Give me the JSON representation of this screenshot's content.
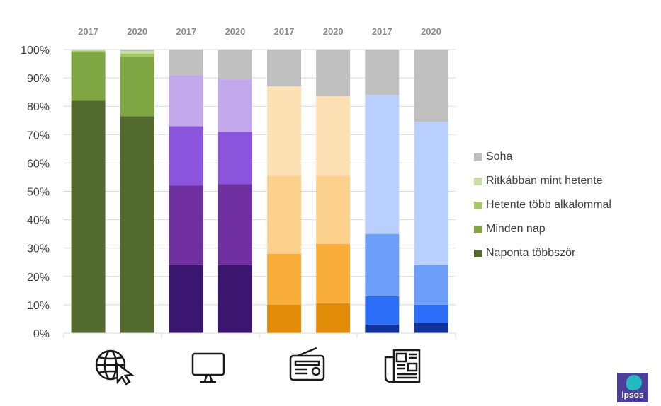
{
  "colors": {
    "internet": [
      "#536b2e",
      "#80a643",
      "#a2c866",
      "#c5dfa3",
      "#bfbfbf"
    ],
    "tv": [
      "#3b1670",
      "#7030a0",
      "#8b54dc",
      "#c3a8ec",
      "#bfbfbf"
    ],
    "radio": [
      "#e28c0a",
      "#f9ad3b",
      "#fcd08d",
      "#fde0b4",
      "#bfbfbf"
    ],
    "press": [
      "#10329a",
      "#2c6ef7",
      "#6d9efa",
      "#b9cffd",
      "#bfbfbf"
    ]
  },
  "icons": [
    "globe-cursor-icon",
    "monitor-icon",
    "radio-icon",
    "newspaper-icon"
  ],
  "logo": {
    "text": "Ipsos"
  },
  "chart_data": {
    "type": "bar",
    "stacked": true,
    "title": "",
    "xlabel": "",
    "ylabel": "",
    "ylim": [
      0,
      100
    ],
    "yticks": [
      "0%",
      "10%",
      "20%",
      "30%",
      "40%",
      "50%",
      "60%",
      "70%",
      "80%",
      "90%",
      "100%"
    ],
    "legend_position": "right",
    "legend": [
      "Soha",
      "Ritkábban mint hetente",
      "Hetente több alkalommal",
      "Minden nap",
      "Naponta többször"
    ],
    "series": [
      {
        "name": "Naponta többször",
        "values": [
          82,
          76.5,
          24,
          24,
          10,
          10.5,
          3,
          3.5
        ]
      },
      {
        "name": "Minden nap",
        "values": [
          17,
          21,
          28,
          28.5,
          18,
          21,
          10,
          6.5
        ]
      },
      {
        "name": "Hetente több alkalommal",
        "values": [
          0.5,
          1,
          21,
          18.5,
          27.5,
          24,
          22,
          14
        ]
      },
      {
        "name": "Ritkábban mint hetente",
        "values": [
          0.3,
          1,
          18,
          18.5,
          31.5,
          28,
          49,
          50.5
        ]
      },
      {
        "name": "Soha",
        "values": [
          0.2,
          0.5,
          9,
          10.5,
          13,
          16.5,
          16,
          25.5
        ]
      }
    ],
    "categories": [
      "2017",
      "2020",
      "2017",
      "2020",
      "2017",
      "2020",
      "2017",
      "2020"
    ],
    "groups": [
      "internet",
      "internet",
      "tv",
      "tv",
      "radio",
      "radio",
      "press",
      "press"
    ]
  }
}
